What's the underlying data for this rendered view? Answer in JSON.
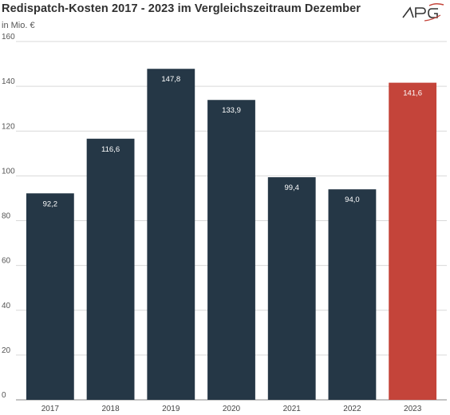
{
  "header": {
    "title": "Redispatch-Kosten 2017 - 2023 im Vergleichszeitraum Dezember",
    "unit": "in Mio. €",
    "logo_text": "APG"
  },
  "colors": {
    "bar_default": "#253746",
    "bar_highlight": "#c4443a",
    "grid": "#d9d9d9",
    "axis": "#888888"
  },
  "chart_data": {
    "type": "bar",
    "title": "Redispatch-Kosten 2017 - 2023 im Vergleichszeitraum Dezember",
    "ylabel": "in Mio. €",
    "xlabel": "",
    "categories": [
      "2017",
      "2018",
      "2019",
      "2020",
      "2021",
      "2022",
      "2023"
    ],
    "values": [
      92.2,
      116.6,
      147.8,
      133.9,
      99.4,
      94.0,
      141.6
    ],
    "value_labels": [
      "92,2",
      "116,6",
      "147,8",
      "133,9",
      "99,4",
      "94,0",
      "141,6"
    ],
    "highlight_category": "2023",
    "ylim": [
      0,
      160
    ],
    "yticks": [
      0,
      20,
      40,
      60,
      80,
      100,
      120,
      140,
      160
    ],
    "grid": true,
    "legend": "none"
  }
}
